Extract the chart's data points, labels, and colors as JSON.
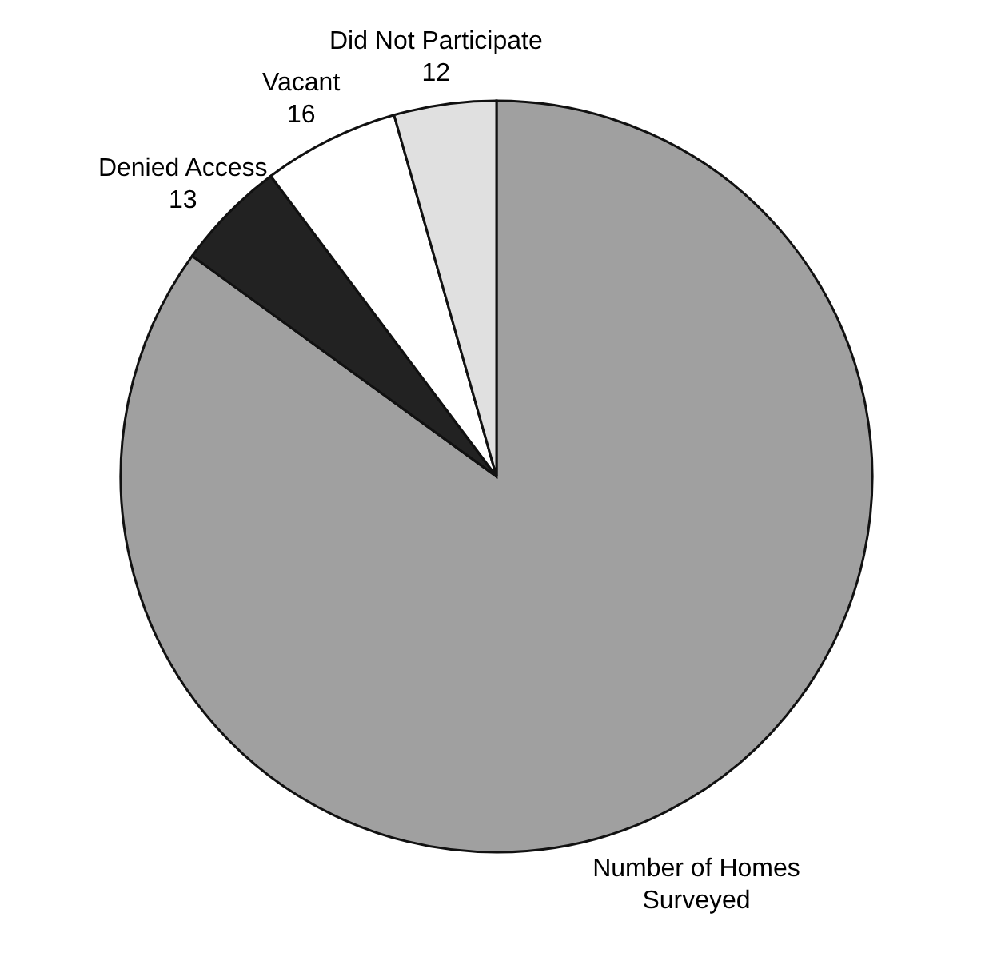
{
  "chart_data": {
    "type": "pie",
    "categories": [
      "Number of Homes Surveyed",
      "Denied Access",
      "Vacant",
      "Did Not Participate"
    ],
    "values": [
      232,
      13,
      16,
      12
    ],
    "value_labels": [
      null,
      "13",
      "16",
      "12"
    ],
    "colors": [
      "#a0a0a0",
      "#222222",
      "#ffffff",
      "#e0e0e0"
    ]
  }
}
